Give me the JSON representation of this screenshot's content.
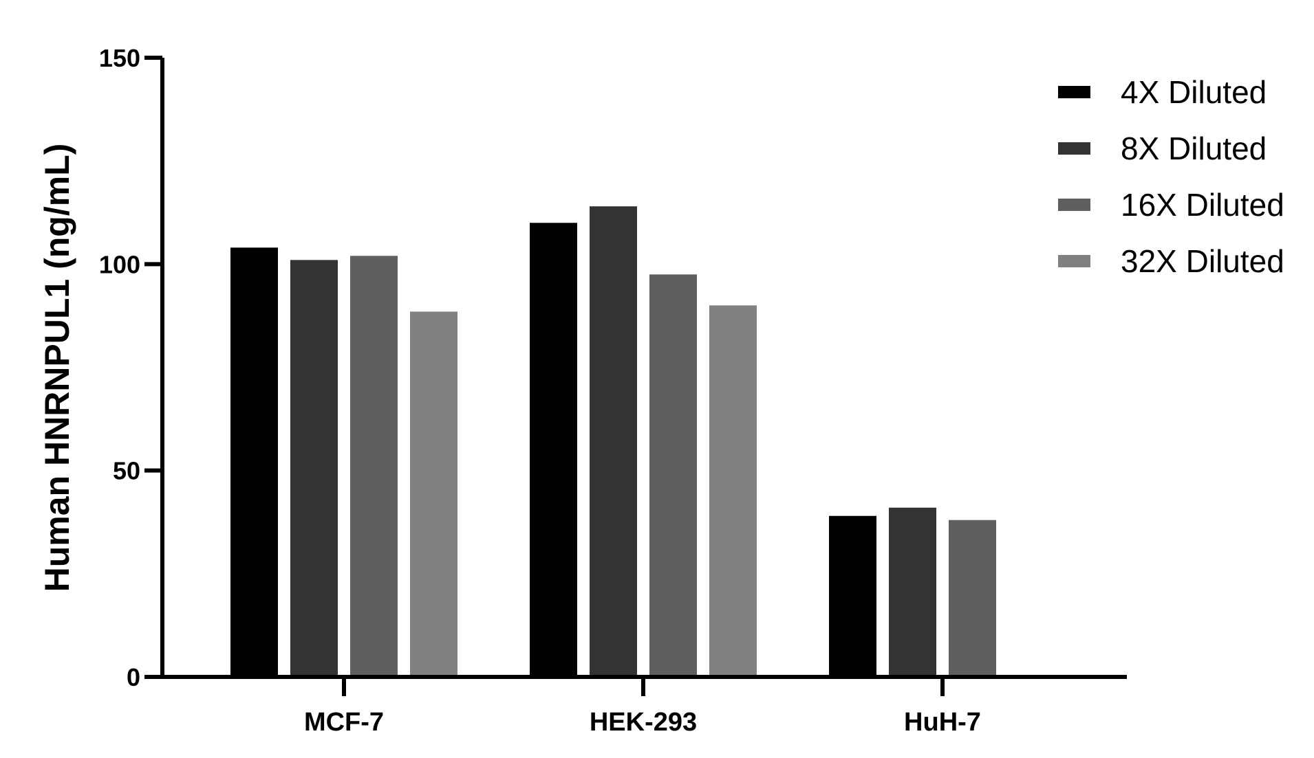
{
  "chart_data": {
    "type": "bar",
    "title": "",
    "xlabel": "",
    "ylabel": "Human HNRNPUL1 (ng/mL)",
    "ylim": [
      0,
      150
    ],
    "yticks": [
      0,
      50,
      100,
      150
    ],
    "categories": [
      "MCF-7",
      "HEK-293",
      "HuH-7"
    ],
    "series": [
      {
        "name": "4X Diluted",
        "color": "#000000",
        "values": [
          104,
          110,
          39
        ]
      },
      {
        "name": "8X Diluted",
        "color": "#333333",
        "values": [
          101,
          114,
          41
        ]
      },
      {
        "name": "16X Diluted",
        "color": "#5f5f5f",
        "values": [
          102,
          97.5,
          38
        ]
      },
      {
        "name": "32X Diluted",
        "color": "#808080",
        "values": [
          88.5,
          90,
          null
        ]
      }
    ],
    "legend": "top-right",
    "grid": false
  }
}
